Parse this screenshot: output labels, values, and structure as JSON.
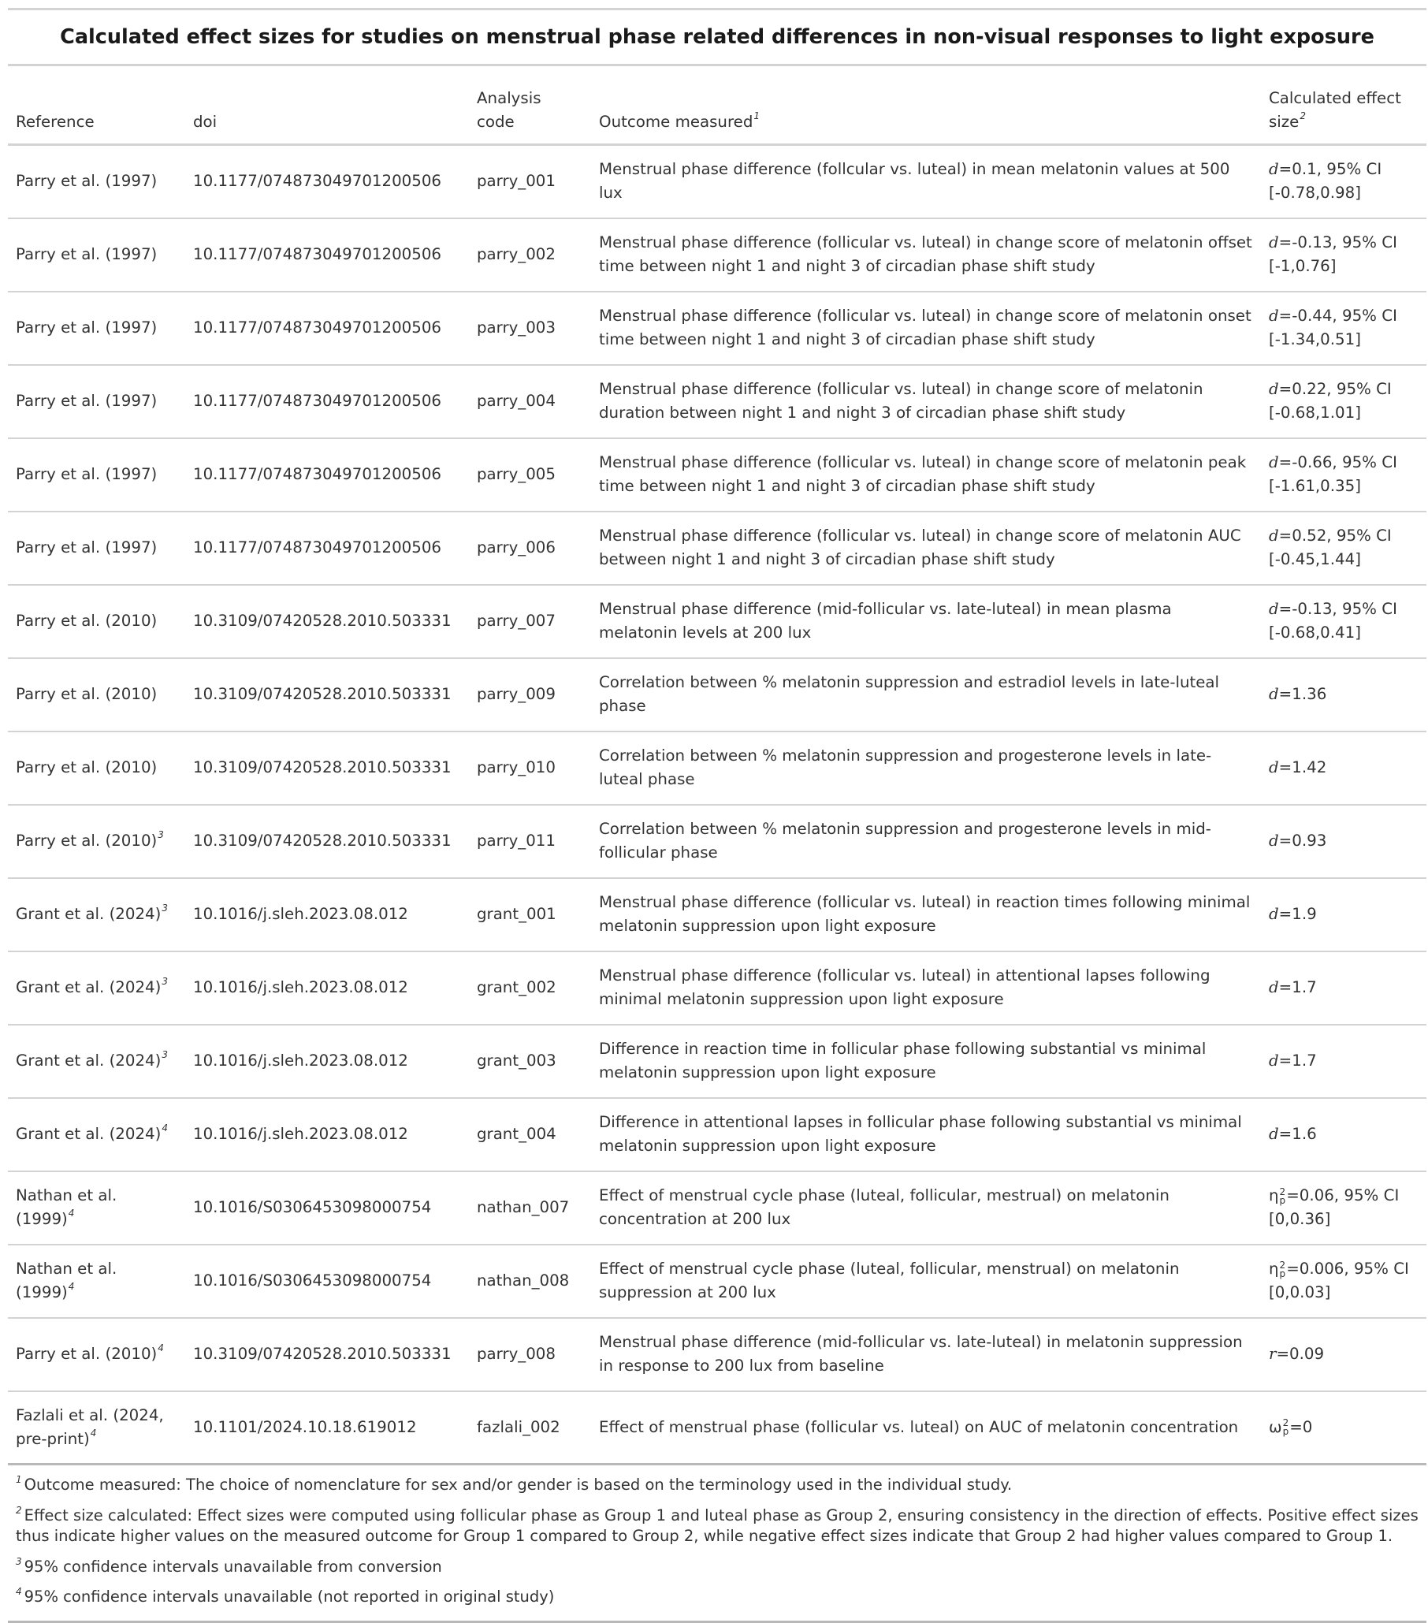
{
  "title": "Calculated effect sizes for studies on menstrual phase related differences in non-visual responses to light exposure",
  "headers": {
    "reference": "Reference",
    "doi": "doi",
    "code": "Analysis code",
    "outcome": "Outcome measured",
    "outcome_note": "1",
    "effect": "Calculated effect size",
    "effect_note": "2"
  },
  "rows": [
    {
      "reference": "Parry et al. (1997)",
      "note": "",
      "doi": "10.1177/074873049701200506",
      "code": "parry_001",
      "outcome": "Menstrual phase difference (follcular vs. luteal) in mean melatonin values at 500 lux",
      "es_symbol": "d",
      "es_sub": "",
      "es_sup": "",
      "es_value": "=0.1, 95% CI [-0.78,0.98]"
    },
    {
      "reference": "Parry et al. (1997)",
      "note": "",
      "doi": "10.1177/074873049701200506",
      "code": "parry_002",
      "outcome": "Menstrual phase difference (follicular vs. luteal) in change score of melatonin offset time between night 1 and night 3 of circadian phase shift study",
      "es_symbol": "d",
      "es_sub": "",
      "es_sup": "",
      "es_value": "=-0.13, 95% CI [-1,0.76]"
    },
    {
      "reference": "Parry et al. (1997)",
      "note": "",
      "doi": "10.1177/074873049701200506",
      "code": "parry_003",
      "outcome": "Menstrual phase difference (follicular vs. luteal) in change score of melatonin onset time between night 1 and night 3 of circadian phase shift study",
      "es_symbol": "d",
      "es_sub": "",
      "es_sup": "",
      "es_value": "=-0.44, 95% CI [-1.34,0.51]"
    },
    {
      "reference": "Parry et al. (1997)",
      "note": "",
      "doi": "10.1177/074873049701200506",
      "code": "parry_004",
      "outcome": "Menstrual phase difference (follicular vs. luteal) in change score of melatonin duration between night 1 and night 3 of circadian phase shift study",
      "es_symbol": "d",
      "es_sub": "",
      "es_sup": "",
      "es_value": "=0.22, 95% CI [-0.68,1.01]"
    },
    {
      "reference": "Parry et al. (1997)",
      "note": "",
      "doi": "10.1177/074873049701200506",
      "code": "parry_005",
      "outcome": "Menstrual phase difference (follicular vs. luteal) in change score of melatonin peak time between night 1 and night 3 of circadian phase shift study",
      "es_symbol": "d",
      "es_sub": "",
      "es_sup": "",
      "es_value": "=-0.66, 95% CI [-1.61,0.35]"
    },
    {
      "reference": "Parry et al. (1997)",
      "note": "",
      "doi": "10.1177/074873049701200506",
      "code": "parry_006",
      "outcome": "Menstrual phase difference (follicular vs. luteal) in change score of melatonin AUC between night 1 and night 3 of circadian phase shift study",
      "es_symbol": "d",
      "es_sub": "",
      "es_sup": "",
      "es_value": "=0.52, 95% CI [-0.45,1.44]"
    },
    {
      "reference": "Parry et al. (2010)",
      "note": "",
      "doi": "10.3109/07420528.2010.503331",
      "code": "parry_007",
      "outcome": "Menstrual phase difference (mid-follicular vs. late-luteal) in mean plasma melatonin levels at 200 lux",
      "es_symbol": "d",
      "es_sub": "",
      "es_sup": "",
      "es_value": "=-0.13, 95% CI [-0.68,0.41]"
    },
    {
      "reference": "Parry et al. (2010)",
      "note": "",
      "doi": "10.3109/07420528.2010.503331",
      "code": "parry_009",
      "outcome": "Correlation between % melatonin suppression and estradiol levels in late-luteal phase",
      "es_symbol": "d",
      "es_sub": "",
      "es_sup": "",
      "es_value": "=1.36"
    },
    {
      "reference": "Parry et al. (2010)",
      "note": "",
      "doi": "10.3109/07420528.2010.503331",
      "code": "parry_010",
      "outcome": "Correlation between % melatonin suppression and progesterone levels in late-luteal phase",
      "es_symbol": "d",
      "es_sub": "",
      "es_sup": "",
      "es_value": "=1.42"
    },
    {
      "reference": "Parry et al. (2010)",
      "note": "3",
      "doi": "10.3109/07420528.2010.503331",
      "code": "parry_011",
      "outcome": "Correlation between % melatonin suppression and progesterone levels in mid-follicular phase",
      "es_symbol": "d",
      "es_sub": "",
      "es_sup": "",
      "es_value": "=0.93"
    },
    {
      "reference": "Grant et al. (2024)",
      "note": "3",
      "doi": "10.1016/j.sleh.2023.08.012",
      "code": "grant_001",
      "outcome": "Menstrual phase difference (follicular vs. luteal) in reaction times following minimal melatonin suppression upon light exposure",
      "es_symbol": "d",
      "es_sub": "",
      "es_sup": "",
      "es_value": "=1.9"
    },
    {
      "reference": "Grant et al. (2024)",
      "note": "3",
      "doi": "10.1016/j.sleh.2023.08.012",
      "code": "grant_002",
      "outcome": "Menstrual phase difference (follicular vs. luteal) in attentional lapses following minimal melatonin suppression upon light exposure",
      "es_symbol": "d",
      "es_sub": "",
      "es_sup": "",
      "es_value": "=1.7"
    },
    {
      "reference": "Grant et al. (2024)",
      "note": "3",
      "doi": "10.1016/j.sleh.2023.08.012",
      "code": "grant_003",
      "outcome": "Difference in reaction time in follicular phase following substantial vs minimal melatonin suppression upon light exposure",
      "es_symbol": "d",
      "es_sub": "",
      "es_sup": "",
      "es_value": "=1.7"
    },
    {
      "reference": "Grant et al. (2024)",
      "note": "4",
      "doi": "10.1016/j.sleh.2023.08.012",
      "code": "grant_004",
      "outcome": "Difference in attentional lapses in follicular phase following substantial vs minimal melatonin suppression upon light exposure",
      "es_symbol": "d",
      "es_sub": "",
      "es_sup": "",
      "es_value": "=1.6"
    },
    {
      "reference": "Nathan et al. (1999)",
      "note": "4",
      "doi": "10.1016/S0306453098000754",
      "code": "nathan_007",
      "outcome": "Effect of menstrual cycle phase (luteal, follicular, mestrual) on melatonin concentration at 200 lux",
      "es_symbol": "η",
      "es_sub": "p",
      "es_sup": "2",
      "es_value": "=0.06, 95% CI [0,0.36]"
    },
    {
      "reference": "Nathan et al. (1999)",
      "note": "4",
      "doi": "10.1016/S0306453098000754",
      "code": "nathan_008",
      "outcome": "Effect of menstrual cycle phase (luteal, follicular, menstrual) on melatonin suppression at 200 lux",
      "es_symbol": "η",
      "es_sub": "p",
      "es_sup": "2",
      "es_value": "=0.006, 95% CI [0,0.03]"
    },
    {
      "reference": "Parry et al. (2010)",
      "note": "4",
      "doi": "10.3109/07420528.2010.503331",
      "code": "parry_008",
      "outcome": "Menstrual phase difference (mid-follicular vs. late-luteal) in melatonin suppression in response to 200 lux from baseline",
      "es_symbol": "r",
      "es_sub": "",
      "es_sup": "",
      "es_value": "=0.09"
    },
    {
      "reference": "Fazlali et al. (2024, pre-print)",
      "note": "4",
      "doi": "10.1101/2024.10.18.619012",
      "code": "fazlali_002",
      "outcome": "Effect of menstrual phase (follicular vs. luteal) on AUC of melatonin concentration",
      "es_symbol": "ω",
      "es_sub": "p",
      "es_sup": "2",
      "es_value": "=0"
    }
  ],
  "footnotes": [
    {
      "mark": "1",
      "text": "Outcome measured: The choice of nomenclature for sex and/or gender is based on the terminology used in the individual study."
    },
    {
      "mark": "2",
      "text": "Effect size calculated: Effect sizes were computed using follicular phase as Group 1 and luteal phase as Group 2, ensuring consistency in the direction of effects. Positive effect sizes thus indicate higher values on the measured outcome for Group 1 compared to Group 2, while negative effect sizes indicate that Group 2 had higher values compared to Group 1."
    },
    {
      "mark": "3",
      "text": "95% confidence intervals unavailable from conversion"
    },
    {
      "mark": "4",
      "text": "95% confidence intervals unavailable (not reported in original study)"
    }
  ]
}
